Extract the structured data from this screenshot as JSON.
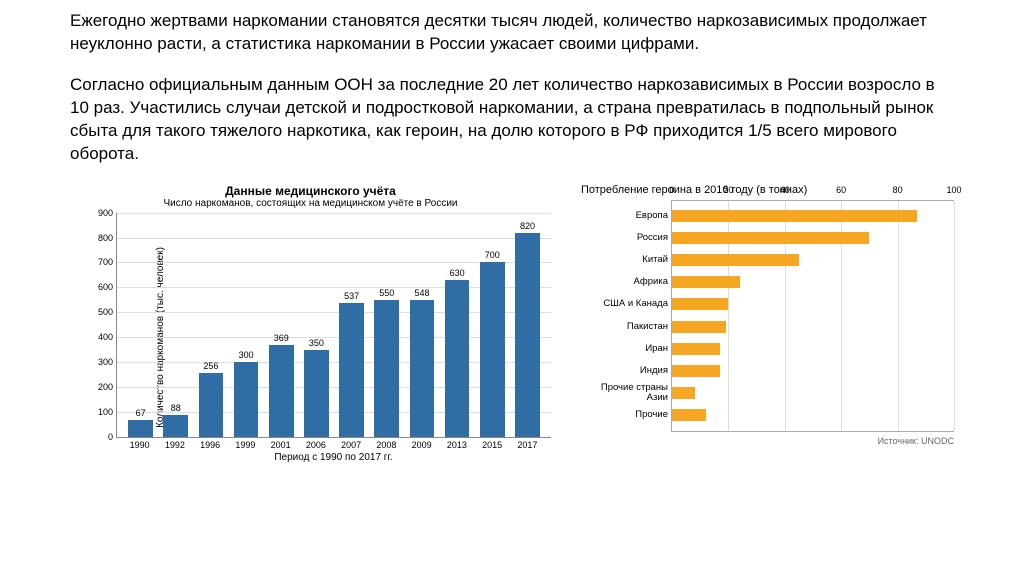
{
  "paragraphs": {
    "p1": "Ежегодно жертвами наркомании становятся десятки тысяч людей, количество наркозависимых продолжает неуклонно расти, а статистика наркомании в России ужасает своими цифрами.",
    "p2": "Согласно официальным данным ООН за последние 20 лет количество наркозависимых в России возросло в 10 раз. Участились случаи детской и подростковой наркомании, а страна превратилась в подпольный рынок сбыта для такого тяжелого наркотика, как героин, на долю которого в РФ приходится 1/5 всего мирового оборота."
  },
  "left_chart": {
    "type": "bar",
    "title": "Данные медицинского учёта",
    "subtitle": "Число наркоманов, состоящих на медицинском учёте в России",
    "ylabel": "Количество наркоманов (тыс. человек)",
    "xlabel": "Период с 1990 по 2017 гг.",
    "categories": [
      "1990",
      "1992",
      "1996",
      "1999",
      "2001",
      "2006",
      "2007",
      "2008",
      "2009",
      "2013",
      "2015",
      "2017"
    ],
    "values": [
      67,
      88,
      256,
      300,
      369,
      350,
      537,
      550,
      548,
      630,
      700,
      820
    ],
    "ymax": 900,
    "ytick_step": 100,
    "bar_color": "#2f6da4",
    "grid_color": "#dddddd",
    "axis_color": "#888888",
    "background_color": "#ffffff",
    "value_fontsize": 9,
    "tick_fontsize": 9,
    "label_fontsize": 10,
    "title_fontsize": 12
  },
  "right_chart": {
    "type": "hbar",
    "title": "Потребление героина в 2016 году (в тоннах)",
    "categories": [
      "Европа",
      "Россия",
      "Китай",
      "Африка",
      "США и Канада",
      "Пакистан",
      "Иран",
      "Индия",
      "Прочие страны Азии",
      "Прочие"
    ],
    "values": [
      87,
      70,
      45,
      24,
      20,
      19,
      17,
      17,
      8,
      12
    ],
    "xmax": 100,
    "xtick_step": 20,
    "bar_color": "#f5a623",
    "grid_color": "#dddddd",
    "axis_color": "#aaaaaa",
    "background_color": "#ffffff",
    "source": "Источник: UNODC",
    "tick_fontsize": 9,
    "label_fontsize": 10,
    "title_fontsize": 11
  }
}
